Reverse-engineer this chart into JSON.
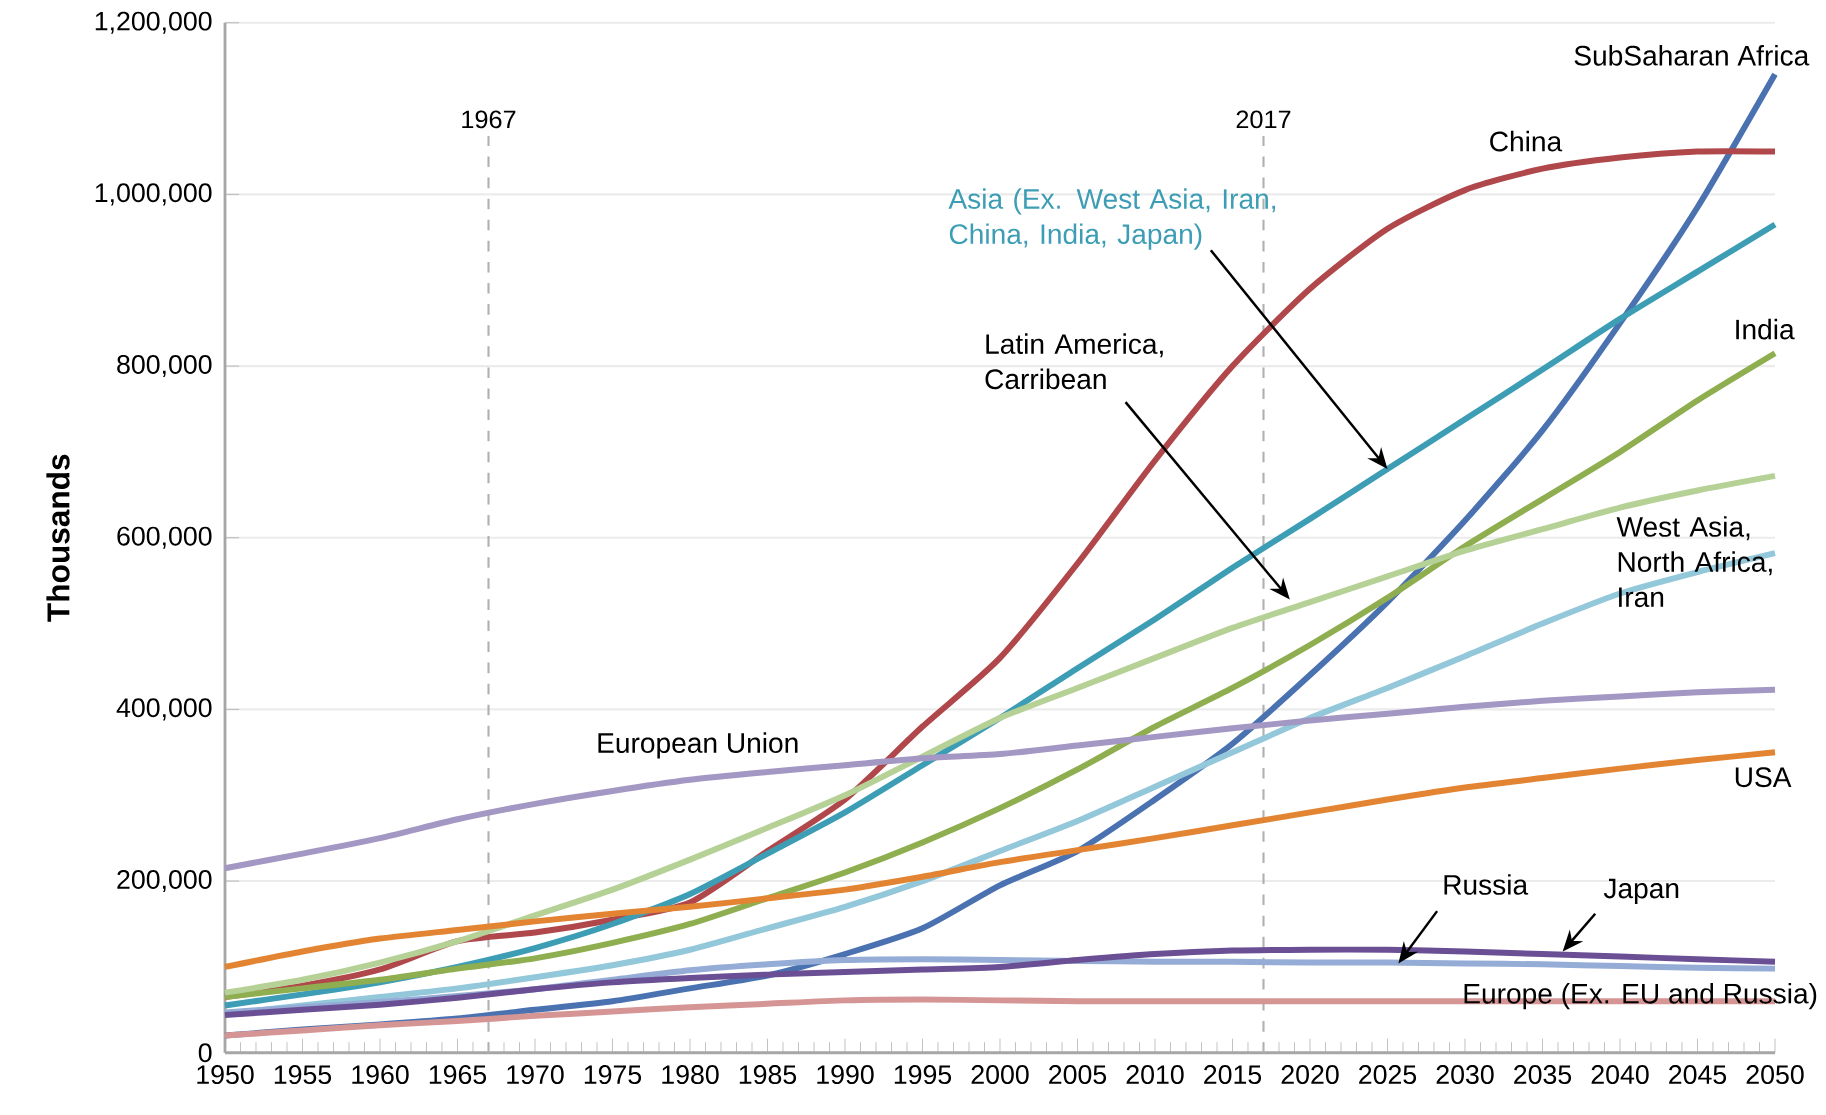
{
  "chart_data": {
    "type": "line",
    "ylabel": "Thousands",
    "x": [
      1950,
      1955,
      1960,
      1965,
      1970,
      1975,
      1980,
      1985,
      1990,
      1995,
      2000,
      2005,
      2010,
      2015,
      2020,
      2025,
      2030,
      2035,
      2040,
      2045,
      2050
    ],
    "series": [
      {
        "name": "SubSaharan Africa",
        "color": "#4a72b0",
        "values": [
          20000,
          27000,
          33000,
          40000,
          50000,
          60000,
          75000,
          90000,
          115000,
          145000,
          195000,
          235000,
          295000,
          360000,
          440000,
          525000,
          620000,
          725000,
          850000,
          985000,
          1140000
        ]
      },
      {
        "name": "China",
        "color": "#b0474a",
        "values": [
          65000,
          78000,
          97000,
          130000,
          140000,
          155000,
          175000,
          235000,
          295000,
          380000,
          460000,
          570000,
          690000,
          800000,
          890000,
          960000,
          1005000,
          1030000,
          1043000,
          1050000,
          1050000
        ]
      },
      {
        "name": "Asia (Ex. West Asia, Iran, China, India, Japan)",
        "color": "#3d9db5",
        "values": [
          55000,
          68000,
          82000,
          100000,
          122000,
          150000,
          185000,
          232000,
          280000,
          335000,
          390000,
          448000,
          505000,
          565000,
          622000,
          680000,
          738000,
          796000,
          855000,
          910000,
          965000
        ]
      },
      {
        "name": "India",
        "color": "#8fae4f",
        "values": [
          65000,
          75000,
          85000,
          98000,
          110000,
          128000,
          150000,
          180000,
          210000,
          245000,
          285000,
          330000,
          380000,
          425000,
          475000,
          530000,
          590000,
          645000,
          700000,
          760000,
          815000
        ]
      },
      {
        "name": "Latin America, Carribean",
        "color": "#b5d196",
        "values": [
          70000,
          85000,
          105000,
          130000,
          160000,
          190000,
          225000,
          262000,
          300000,
          345000,
          390000,
          425000,
          460000,
          495000,
          525000,
          555000,
          585000,
          610000,
          635000,
          655000,
          672000
        ]
      },
      {
        "name": "West Asia, North Africa, Iran",
        "color": "#93c7da",
        "values": [
          45000,
          55000,
          65000,
          75000,
          88000,
          102000,
          120000,
          145000,
          170000,
          200000,
          235000,
          270000,
          310000,
          350000,
          390000,
          425000,
          462000,
          500000,
          535000,
          560000,
          582000
        ]
      },
      {
        "name": "European Union",
        "color": "#a397c4",
        "values": [
          215000,
          232000,
          250000,
          272000,
          290000,
          305000,
          318000,
          327000,
          335000,
          343000,
          348000,
          358000,
          368000,
          378000,
          387000,
          395000,
          403000,
          410000,
          415000,
          420000,
          423000
        ]
      },
      {
        "name": "USA",
        "color": "#e38432",
        "values": [
          100000,
          118000,
          133000,
          143000,
          153000,
          162000,
          170000,
          180000,
          190000,
          205000,
          222000,
          236000,
          250000,
          265000,
          280000,
          295000,
          309000,
          320000,
          331000,
          341000,
          350000
        ]
      },
      {
        "name": "Russia",
        "color": "#95acd6",
        "values": [
          47000,
          53000,
          59000,
          66000,
          74000,
          85000,
          96000,
          103000,
          108000,
          109000,
          108000,
          107000,
          106000,
          106000,
          105000,
          105000,
          104000,
          103000,
          101000,
          99000,
          98000
        ]
      },
      {
        "name": "Japan",
        "color": "#6a4f94",
        "values": [
          44000,
          50000,
          56000,
          64000,
          74000,
          82000,
          87000,
          91000,
          94000,
          97000,
          100000,
          108000,
          115000,
          119000,
          120000,
          120000,
          118000,
          115000,
          112000,
          109000,
          106000
        ]
      },
      {
        "name": "Europe (Ex. EU and Russia)",
        "color": "#d69595",
        "values": [
          20000,
          26000,
          32000,
          37000,
          43000,
          48000,
          53000,
          57000,
          61000,
          62000,
          61000,
          60000,
          60000,
          60000,
          60000,
          60000,
          60000,
          60000,
          60000,
          60000,
          60000
        ]
      }
    ],
    "xlim": [
      1950,
      2050
    ],
    "xticks": [
      1950,
      1955,
      1960,
      1965,
      1970,
      1975,
      1980,
      1985,
      1990,
      1995,
      2000,
      2005,
      2010,
      2015,
      2020,
      2025,
      2030,
      2035,
      2040,
      2045,
      2050
    ],
    "ylim": [
      0,
      1200000
    ],
    "yticks": [
      0,
      {
        "value": 200000,
        "label": "200,000"
      },
      {
        "value": 400000,
        "label": "400,000"
      },
      {
        "value": 600000,
        "label": "600,000"
      },
      {
        "value": 800000,
        "label": "800,000"
      },
      {
        "value": 1000000,
        "label": "1,000,000"
      },
      {
        "value": 1200000,
        "label": "1,200,000"
      }
    ],
    "grid": "y",
    "ref_lines": [
      {
        "axis": "x",
        "value": 1967,
        "label": "1967",
        "color": "#b0b0b0",
        "line_style": "dashed"
      },
      {
        "axis": "x",
        "value": 2017,
        "label": "2017",
        "color": "#b0b0b0",
        "line_style": "dashed"
      }
    ]
  }
}
